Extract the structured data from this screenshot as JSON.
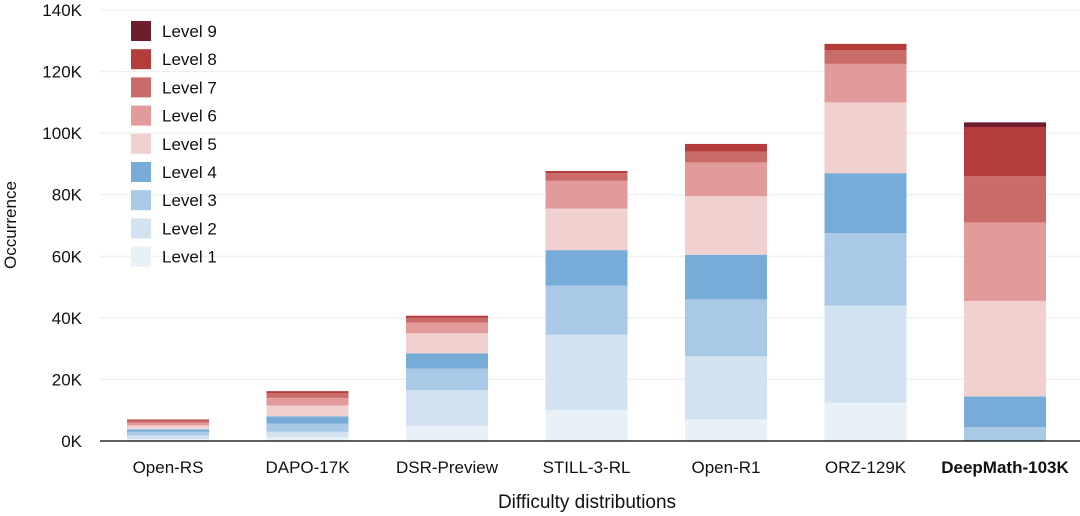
{
  "chart_data": {
    "type": "bar",
    "stacked": true,
    "xlabel": "Difficulty distributions",
    "ylabel": "Occurrence",
    "ylim": [
      0,
      140000
    ],
    "yticks": [
      0,
      20000,
      40000,
      60000,
      80000,
      100000,
      120000,
      140000
    ],
    "ytick_labels": [
      "0K",
      "20K",
      "40K",
      "60K",
      "80K",
      "100K",
      "120K",
      "140K"
    ],
    "grid": true,
    "legend_position": "top-left",
    "categories": [
      "Open-RS",
      "DAPO-17K",
      "DSR-Preview",
      "STILL-3-RL",
      "Open-R1",
      "ORZ-129K",
      "DeepMath-103K"
    ],
    "highlight_category": "DeepMath-103K",
    "series": [
      {
        "name": "Level 1",
        "color": "#e8f0f8",
        "values": [
          600,
          1200,
          5000,
          10000,
          7000,
          12500,
          0
        ]
      },
      {
        "name": "Level 2",
        "color": "#d2e2f1",
        "values": [
          1200,
          1800,
          11500,
          24500,
          20500,
          31500,
          0
        ]
      },
      {
        "name": "Level 3",
        "color": "#a9c9e6",
        "values": [
          1200,
          2600,
          7000,
          16000,
          18500,
          23500,
          4500
        ]
      },
      {
        "name": "Level 4",
        "color": "#78acd8",
        "values": [
          800,
          2400,
          5000,
          11500,
          14500,
          19500,
          10000
        ]
      },
      {
        "name": "Level 5",
        "color": "#f1d0d0",
        "values": [
          1200,
          3500,
          6500,
          13500,
          19000,
          23000,
          31000
        ]
      },
      {
        "name": "Level 6",
        "color": "#e39a9b",
        "values": [
          1000,
          2500,
          3500,
          9000,
          11000,
          12500,
          25500
        ]
      },
      {
        "name": "Level 7",
        "color": "#c86b69",
        "values": [
          600,
          1500,
          1500,
          2500,
          3500,
          4500,
          15000
        ]
      },
      {
        "name": "Level 8",
        "color": "#b43c3a",
        "values": [
          400,
          700,
          700,
          700,
          2500,
          2000,
          16000
        ]
      },
      {
        "name": "Level 9",
        "color": "#6e1d2e",
        "values": [
          0,
          0,
          0,
          0,
          0,
          0,
          1500
        ]
      }
    ]
  }
}
